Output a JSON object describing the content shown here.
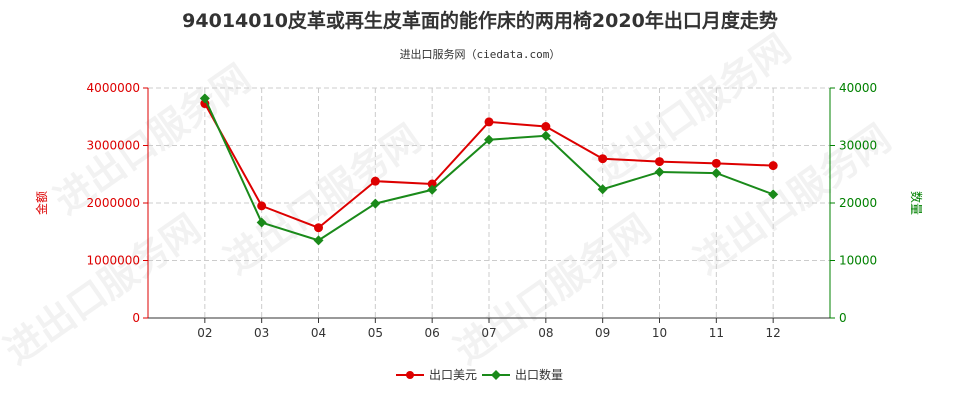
{
  "chart_data": {
    "type": "line",
    "title": "94014010皮革或再生皮革面的能作床的两用椅2020年出口月度走势",
    "subtitle": "进出口服务网（ciedata.com）",
    "categories": [
      "02",
      "03",
      "04",
      "05",
      "06",
      "07",
      "08",
      "09",
      "10",
      "11",
      "12"
    ],
    "y_left": {
      "label": "金额",
      "ylim": [
        0,
        4000000
      ],
      "ticks": [
        "0",
        "1000000",
        "2000000",
        "3000000",
        "4000000"
      ],
      "color": "#dd0000"
    },
    "y_right": {
      "label": "数量",
      "ylim": [
        0,
        40000
      ],
      "ticks": [
        "0",
        "10000",
        "20000",
        "30000",
        "40000"
      ],
      "color": "#008000"
    },
    "series": [
      {
        "name": "出口美元",
        "axis": "left",
        "color": "#dd0000",
        "values": [
          3730000,
          1950000,
          1570000,
          2380000,
          2330000,
          3410000,
          3330000,
          2770000,
          2720000,
          2690000,
          2650000
        ]
      },
      {
        "name": "出口数量",
        "axis": "right",
        "color": "#1a8a1a",
        "values": [
          38200,
          16600,
          13500,
          19900,
          22300,
          31000,
          31700,
          22400,
          25400,
          25200,
          21500
        ]
      }
    ],
    "grid": true,
    "legend_position": "bottom-center"
  },
  "watermark": "进出口服务网"
}
